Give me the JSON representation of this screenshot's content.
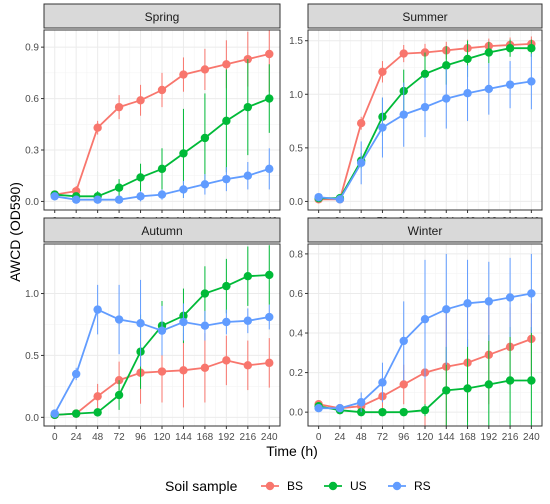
{
  "chart_data": {
    "type": "line",
    "facet_label_y": "AWCD (OD590)",
    "facet_label_x": "Time (h)",
    "x": [
      0,
      24,
      48,
      72,
      96,
      120,
      144,
      168,
      192,
      216,
      240
    ],
    "legend": {
      "title": "Soil sample",
      "position": "bottom",
      "entries": [
        "BS",
        "US",
        "RS"
      ]
    },
    "colors": {
      "BS": "#F8766D",
      "US": "#00BA38",
      "RS": "#619CFF"
    },
    "grid": true,
    "panels": [
      {
        "title": "Spring",
        "ylim": [
          -0.05,
          1.0
        ],
        "yticks": [
          0.0,
          0.3,
          0.6,
          0.9
        ],
        "series": [
          {
            "name": "BS",
            "values": [
              0.04,
              0.06,
              0.43,
              0.55,
              0.59,
              0.65,
              0.74,
              0.77,
              0.8,
              0.83,
              0.86
            ],
            "err": [
              0.02,
              0.03,
              0.04,
              0.07,
              0.09,
              0.1,
              0.1,
              0.12,
              0.14,
              0.16,
              0.22
            ]
          },
          {
            "name": "US",
            "values": [
              0.04,
              0.03,
              0.03,
              0.08,
              0.14,
              0.19,
              0.28,
              0.37,
              0.47,
              0.55,
              0.6
            ],
            "err": [
              0.02,
              0.02,
              0.03,
              0.05,
              0.08,
              0.12,
              0.26,
              0.26,
              0.3,
              0.28,
              0.2
            ]
          },
          {
            "name": "RS",
            "values": [
              0.03,
              0.01,
              0.01,
              0.01,
              0.03,
              0.04,
              0.07,
              0.1,
              0.13,
              0.15,
              0.19
            ],
            "err": [
              0.02,
              0.02,
              0.02,
              0.02,
              0.03,
              0.03,
              0.05,
              0.06,
              0.07,
              0.08,
              0.12
            ]
          }
        ]
      },
      {
        "title": "Summer",
        "ylim": [
          -0.08,
          1.6
        ],
        "yticks": [
          0.0,
          0.5,
          1.0,
          1.5
        ],
        "series": [
          {
            "name": "BS",
            "values": [
              0.02,
              0.02,
              0.73,
              1.21,
              1.38,
              1.39,
              1.41,
              1.43,
              1.45,
              1.46,
              1.47
            ],
            "err": [
              0.02,
              0.02,
              0.06,
              0.1,
              0.08,
              0.08,
              0.08,
              0.08,
              0.07,
              0.07,
              0.07
            ]
          },
          {
            "name": "US",
            "values": [
              0.03,
              0.03,
              0.38,
              0.79,
              1.03,
              1.19,
              1.27,
              1.33,
              1.39,
              1.43,
              1.43
            ],
            "err": [
              0.02,
              0.02,
              0.07,
              0.18,
              0.2,
              0.2,
              0.18,
              0.17,
              0.1,
              0.08,
              0.08
            ]
          },
          {
            "name": "RS",
            "values": [
              0.04,
              0.02,
              0.36,
              0.69,
              0.81,
              0.88,
              0.96,
              1.01,
              1.05,
              1.09,
              1.12
            ],
            "err": [
              0.02,
              0.02,
              0.2,
              0.28,
              0.3,
              0.28,
              0.28,
              0.26,
              0.24,
              0.22,
              0.26
            ]
          }
        ]
      },
      {
        "title": "Autumn",
        "ylim": [
          -0.07,
          1.4
        ],
        "yticks": [
          0.0,
          0.5,
          1.0
        ],
        "series": [
          {
            "name": "BS",
            "values": [
              0.02,
              0.03,
              0.17,
              0.3,
              0.36,
              0.37,
              0.38,
              0.4,
              0.46,
              0.42,
              0.44
            ],
            "err": [
              0.02,
              0.02,
              0.1,
              0.15,
              0.25,
              0.25,
              0.3,
              0.28,
              0.2,
              0.2,
              0.2
            ]
          },
          {
            "name": "US",
            "values": [
              0.02,
              0.03,
              0.04,
              0.18,
              0.53,
              0.74,
              0.82,
              1.0,
              1.06,
              1.14,
              1.15
            ],
            "err": [
              0.02,
              0.02,
              0.03,
              0.12,
              0.3,
              0.2,
              0.22,
              0.22,
              0.22,
              0.24,
              0.24
            ]
          },
          {
            "name": "RS",
            "values": [
              0.03,
              0.35,
              0.87,
              0.79,
              0.76,
              0.7,
              0.77,
              0.74,
              0.77,
              0.78,
              0.81
            ],
            "err": [
              0.02,
              0.05,
              0.2,
              0.28,
              0.35,
              0.2,
              0.15,
              0.12,
              0.1,
              0.1,
              0.1
            ]
          }
        ]
      },
      {
        "title": "Winter",
        "ylim": [
          -0.07,
          0.85
        ],
        "yticks": [
          0.0,
          0.2,
          0.4,
          0.6,
          0.8
        ],
        "series": [
          {
            "name": "BS",
            "values": [
              0.04,
              0.02,
              0.03,
              0.08,
              0.14,
              0.2,
              0.23,
              0.25,
              0.29,
              0.33,
              0.37
            ],
            "err": [
              0.02,
              0.02,
              0.03,
              0.1,
              0.1,
              0.3,
              0.3,
              0.3,
              0.25,
              0.2,
              0.18
            ]
          },
          {
            "name": "US",
            "values": [
              0.03,
              0.01,
              0.0,
              0.0,
              0.0,
              0.01,
              0.11,
              0.12,
              0.14,
              0.16,
              0.16
            ],
            "err": [
              0.02,
              0.02,
              0.02,
              0.02,
              0.02,
              0.03,
              0.22,
              0.25,
              0.25,
              0.27,
              0.27
            ]
          },
          {
            "name": "RS",
            "values": [
              0.02,
              0.02,
              0.05,
              0.15,
              0.36,
              0.47,
              0.52,
              0.55,
              0.56,
              0.58,
              0.6
            ],
            "err": [
              0.02,
              0.02,
              0.05,
              0.1,
              0.2,
              0.3,
              0.28,
              0.22,
              0.2,
              0.2,
              0.2
            ]
          }
        ]
      }
    ]
  }
}
